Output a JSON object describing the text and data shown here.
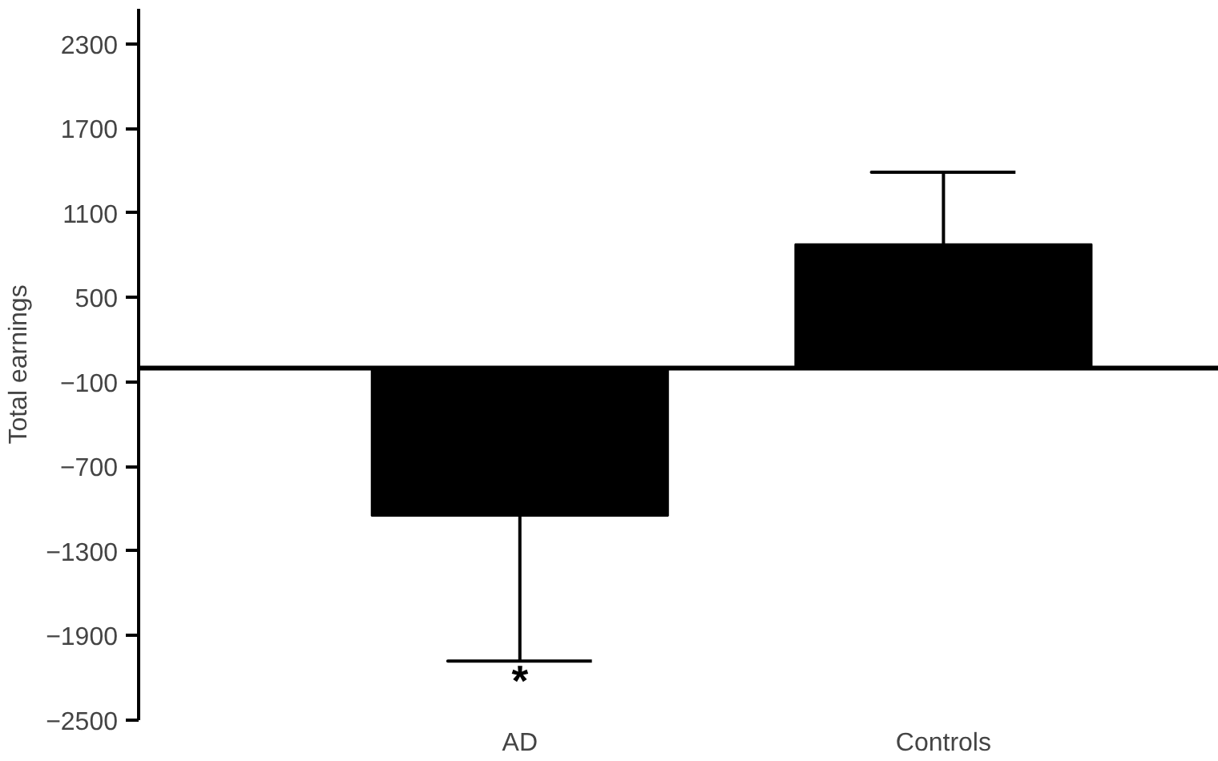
{
  "chart_data": {
    "type": "bar",
    "ylabel": "Total earnings",
    "categories": [
      "AD",
      "Controls"
    ],
    "values": [
      -1050,
      880
    ],
    "colors": [
      "#000000",
      "#000000"
    ],
    "errors": [
      [
        -2080,
        -1050
      ],
      [
        880,
        1390
      ]
    ],
    "ylim": [
      -2500,
      2550
    ],
    "yticks": [
      {
        "value": -2500,
        "label": "−2500"
      },
      {
        "value": -1900,
        "label": "−1900"
      },
      {
        "value": -1300,
        "label": "−1300"
      },
      {
        "value": -700,
        "label": "−700"
      },
      {
        "value": -100,
        "label": "−100"
      },
      500,
      1100,
      1700,
      2300
    ],
    "annotations": [
      "*"
    ],
    "grid": false
  }
}
